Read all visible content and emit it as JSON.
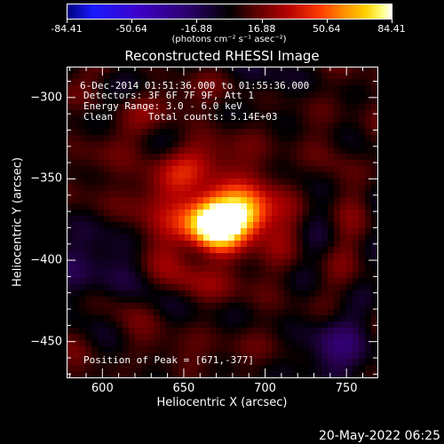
{
  "colorbar": {
    "ticks": [
      "-84.41",
      "-50.64",
      "-16.88",
      "16.88",
      "50.64",
      "84.41"
    ],
    "units": "(photons cm⁻² s⁻¹ asec⁻²)"
  },
  "title": "Reconstructed RHESSI Image",
  "info": {
    "time": "6-Dec-2014 01:51:36.000 to 01:55:36.000",
    "detectors": "Detectors: 3F 6F 7F 9F, Att 1",
    "energy": "Energy Range: 3.0 - 6.0 keV",
    "clean": "Clean      Total counts: 5.14E+03",
    "peak": "Position of Peak = [671,-377]"
  },
  "datestamp": "20-May-2022 06:25",
  "chart_data": {
    "type": "heatmap",
    "title": "Reconstructed RHESSI Image",
    "xlabel": "Heliocentric X (arcsec)",
    "ylabel": "Heliocentric Y (arcsec)",
    "xlim": [
      578,
      769
    ],
    "ylim": [
      -472,
      -281
    ],
    "x_ticks": [
      600,
      650,
      700,
      750
    ],
    "y_ticks": [
      -300,
      -350,
      -400,
      -450
    ],
    "colorbar_range": [
      -84.41,
      84.41
    ],
    "colorbar_ticks": [
      -84.41,
      -50.64,
      -16.88,
      16.88,
      50.64,
      84.41
    ],
    "peak_position": [
      671,
      -377
    ],
    "peak_value": 84.41,
    "colormap": "blue-black-red-yellow-white",
    "sources": [
      {
        "x": 669,
        "y": -377,
        "sigma": 12,
        "amp": 84.41
      },
      {
        "x": 690,
        "y": -372,
        "sigma": 10,
        "amp": 60
      },
      {
        "x": 655,
        "y": -365,
        "sigma": 28,
        "amp": 22
      }
    ]
  }
}
